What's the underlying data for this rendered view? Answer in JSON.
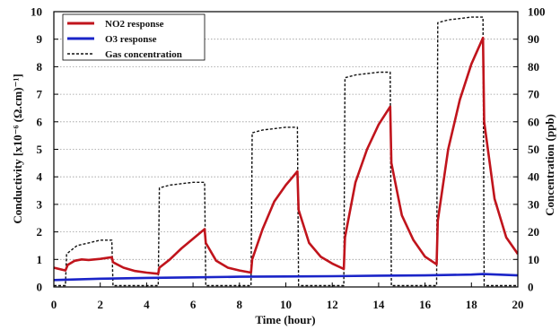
{
  "chart_data": {
    "type": "line",
    "title": "",
    "xlabel": "Time (hour)",
    "ylabel_left": "Conductivity [x10⁻⁶ (Ω.cm)⁻¹]",
    "ylabel_right": "Concentration (ppb)",
    "xlim": [
      0,
      20
    ],
    "ylim_left": [
      0,
      10
    ],
    "ylim_right": [
      0,
      100
    ],
    "x_ticks": [
      0,
      2,
      4,
      6,
      8,
      10,
      12,
      14,
      16,
      18,
      20
    ],
    "y_ticks_left": [
      0,
      1,
      2,
      3,
      4,
      5,
      6,
      7,
      8,
      9,
      10
    ],
    "y_ticks_right": [
      0,
      10,
      20,
      30,
      40,
      50,
      60,
      70,
      80,
      90,
      100
    ],
    "grid": "horizontal dotted",
    "legend_position": "top-left",
    "series": [
      {
        "name": "NO2 response",
        "axis": "left",
        "color": "#c0141c",
        "style": "solid",
        "x": [
          0.0,
          0.5,
          0.6,
          0.9,
          1.2,
          1.5,
          2.0,
          2.5,
          2.55,
          3.0,
          3.5,
          4.0,
          4.5,
          4.55,
          5.0,
          5.5,
          6.0,
          6.5,
          6.55,
          7.0,
          7.5,
          8.0,
          8.5,
          8.55,
          9.0,
          9.5,
          10.0,
          10.5,
          10.55,
          11.0,
          11.5,
          12.0,
          12.5,
          12.55,
          13.0,
          13.5,
          14.0,
          14.5,
          14.55,
          15.0,
          15.5,
          16.0,
          16.5,
          16.55,
          17.0,
          17.5,
          18.0,
          18.5,
          18.55,
          19.0,
          19.5,
          20.0
        ],
        "y": [
          0.7,
          0.6,
          0.8,
          0.95,
          1.0,
          0.98,
          1.02,
          1.08,
          0.9,
          0.7,
          0.58,
          0.52,
          0.48,
          0.7,
          1.0,
          1.4,
          1.75,
          2.1,
          1.6,
          0.95,
          0.7,
          0.6,
          0.52,
          1.0,
          2.1,
          3.1,
          3.7,
          4.2,
          2.8,
          1.6,
          1.1,
          0.85,
          0.65,
          1.8,
          3.8,
          5.0,
          5.9,
          6.55,
          4.5,
          2.6,
          1.7,
          1.1,
          0.82,
          2.4,
          5.0,
          6.8,
          8.1,
          9.05,
          6.0,
          3.2,
          1.8,
          1.2
        ]
      },
      {
        "name": "O3 response",
        "axis": "left",
        "color": "#1a24c8",
        "style": "solid",
        "x": [
          0,
          2,
          4,
          6,
          8,
          10,
          12,
          14,
          16,
          18,
          18.5,
          20
        ],
        "y": [
          0.25,
          0.3,
          0.33,
          0.35,
          0.37,
          0.38,
          0.39,
          0.41,
          0.42,
          0.45,
          0.47,
          0.42
        ]
      },
      {
        "name": "Gas concentration",
        "axis": "right",
        "color": "#111111",
        "style": "dashed",
        "x": [
          0,
          0.5,
          0.55,
          1.0,
          1.5,
          2.0,
          2.5,
          2.55,
          4.5,
          4.55,
          5.0,
          6.0,
          6.5,
          6.55,
          8.5,
          8.55,
          9.0,
          10.0,
          10.5,
          10.55,
          12.5,
          12.55,
          13.0,
          14.0,
          14.5,
          14.55,
          16.5,
          16.55,
          17.0,
          18.0,
          18.5,
          18.55,
          20.0
        ],
        "y": [
          0.5,
          0.5,
          12,
          15,
          16,
          17,
          17,
          0.5,
          0.5,
          36,
          37,
          38,
          38,
          0.5,
          0.5,
          56,
          57,
          58,
          58,
          0.5,
          0.5,
          76,
          77,
          78,
          78,
          0.5,
          0.5,
          96,
          97,
          98,
          98,
          0.5,
          0.5
        ]
      }
    ]
  }
}
